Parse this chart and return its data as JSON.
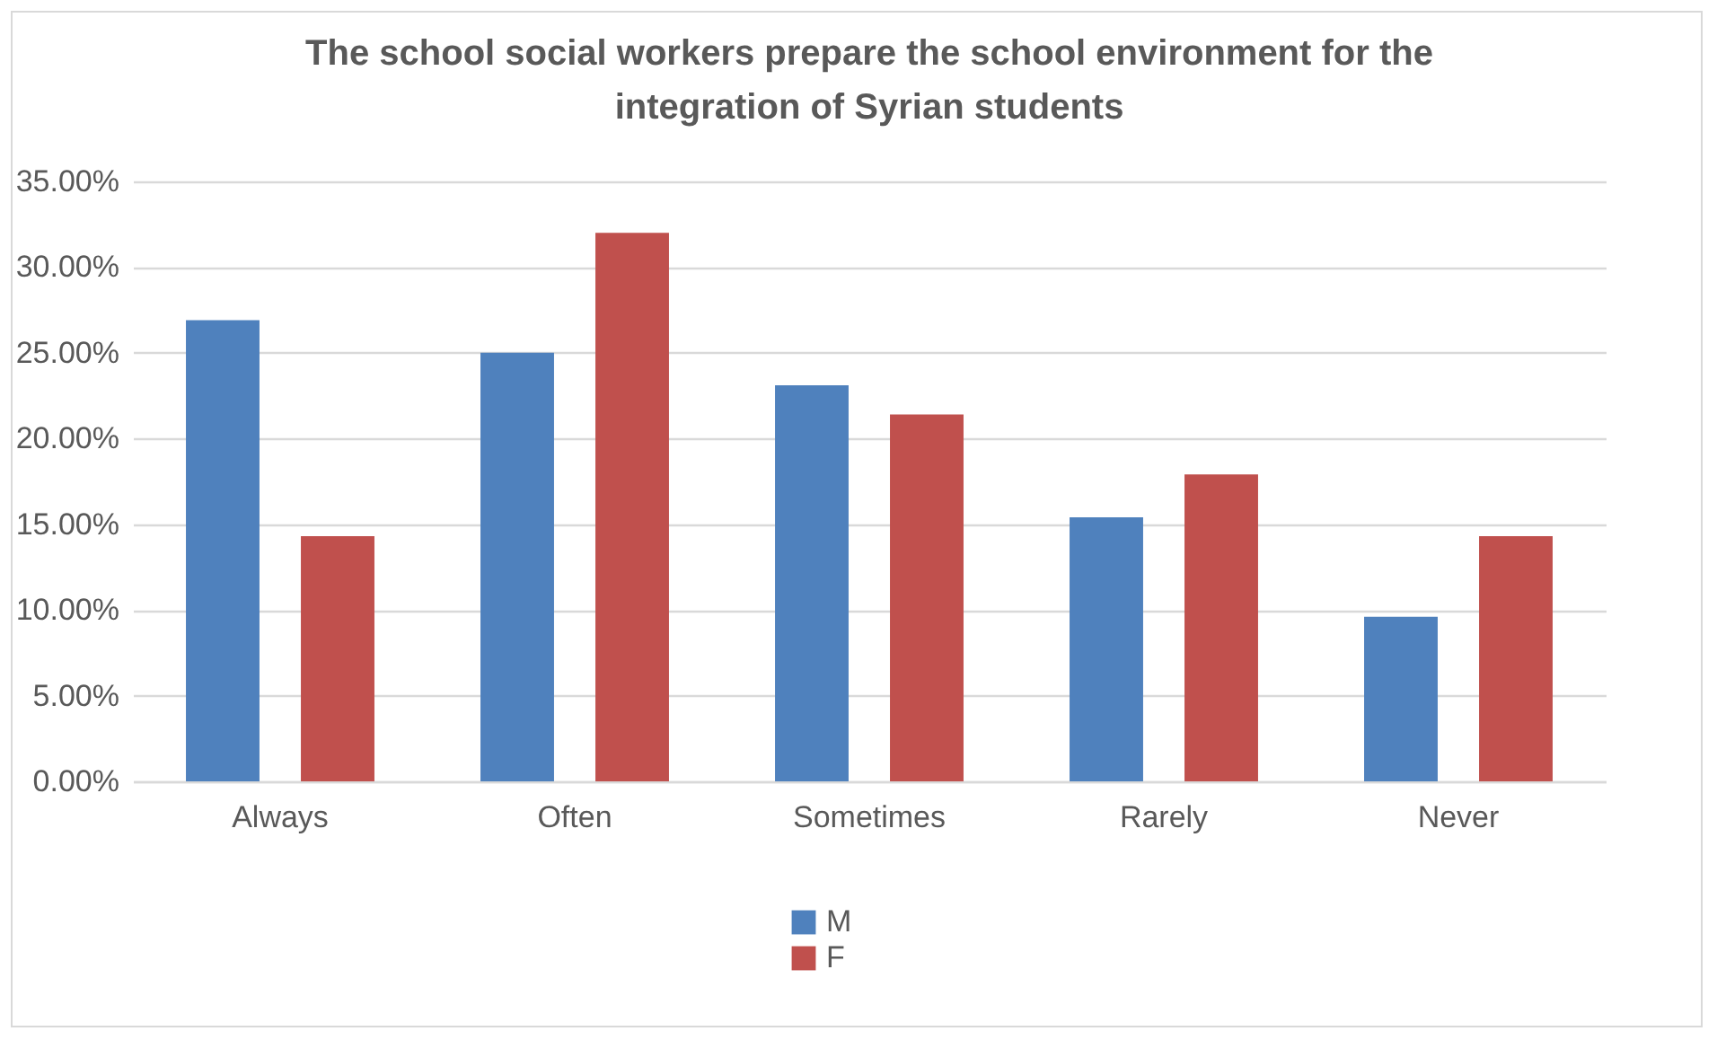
{
  "chart_data": {
    "type": "bar",
    "title": "The school social workers prepare the school environment for the integration of Syrian students",
    "categories": [
      "Always",
      "Often",
      "Sometimes",
      "Rarely",
      "Never"
    ],
    "series": [
      {
        "name": "M",
        "color": "#4f81bd",
        "values": [
          26.9,
          25.0,
          23.1,
          15.4,
          9.6
        ]
      },
      {
        "name": "F",
        "color": "#c0504d",
        "values": [
          14.3,
          32.0,
          21.4,
          17.9,
          14.3
        ]
      }
    ],
    "ylim": [
      0,
      35
    ],
    "yticks": [
      {
        "value": 0,
        "label": "0.00%"
      },
      {
        "value": 5,
        "label": "5.00%"
      },
      {
        "value": 10,
        "label": "10.00%"
      },
      {
        "value": 15,
        "label": "15.00%"
      },
      {
        "value": 20,
        "label": "20.00%"
      },
      {
        "value": 25,
        "label": "25.00%"
      },
      {
        "value": 30,
        "label": "30.00%"
      },
      {
        "value": 35,
        "label": "35.00%"
      }
    ],
    "grid": "y",
    "legend": "bottom"
  }
}
